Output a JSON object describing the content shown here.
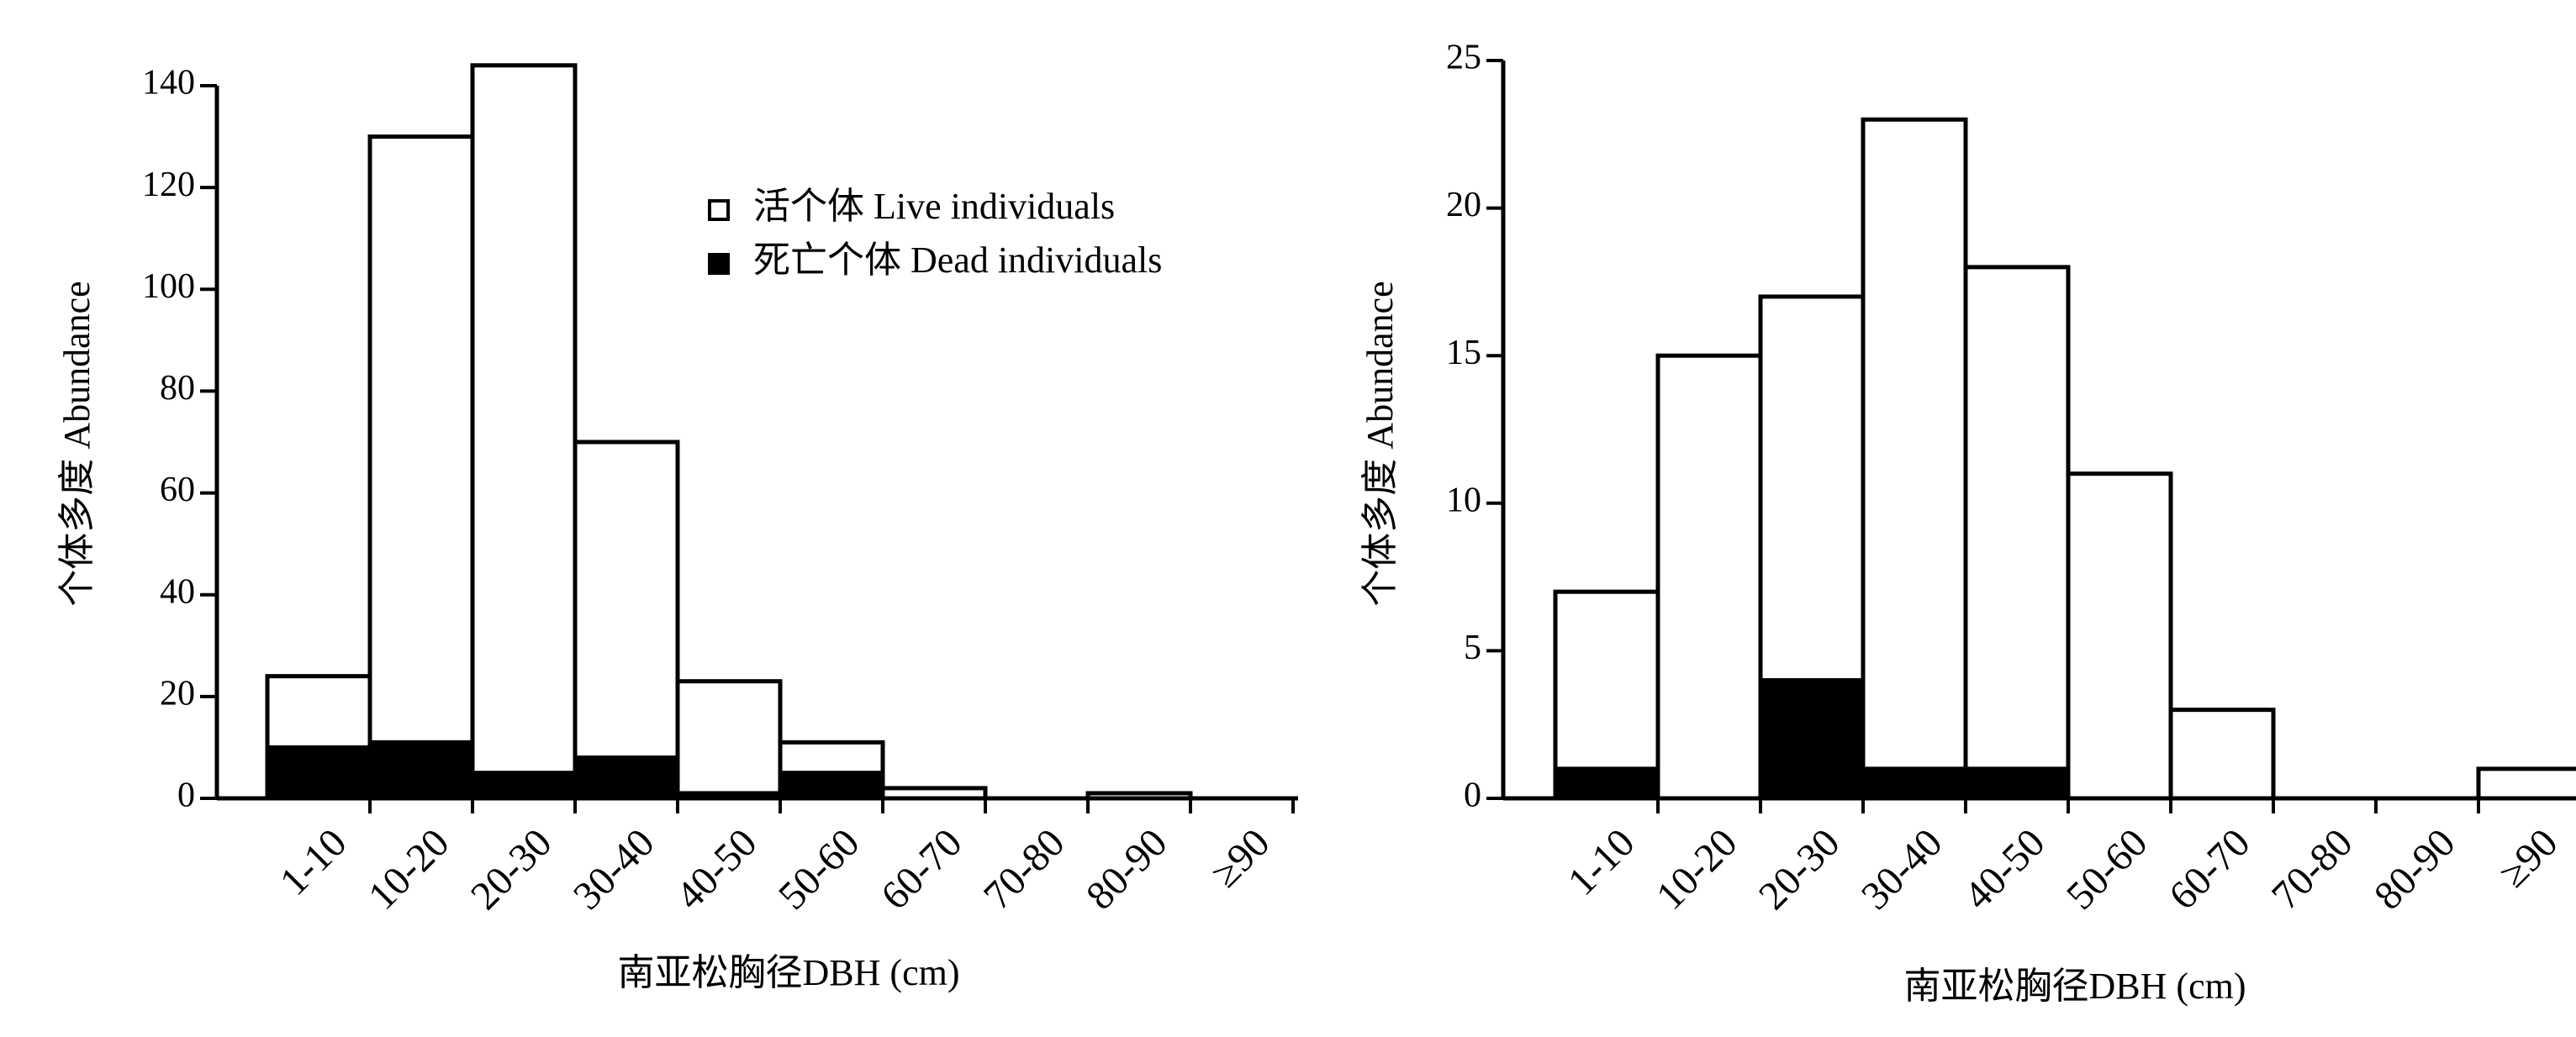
{
  "colors": {
    "live": "#ffffff",
    "dead": "#000000",
    "stroke": "#000000"
  },
  "chart_data": [
    {
      "type": "bar",
      "stacked": true,
      "categories": [
        "1-10",
        "10-20",
        "20-30",
        "30-40",
        "40-50",
        "50-60",
        "60-70",
        "70-80",
        "80-90",
        "≥90"
      ],
      "series": [
        {
          "name": "活个体 Live individuals",
          "values": [
            14,
            119,
            139,
            62,
            22,
            6,
            2,
            0,
            1,
            0
          ]
        },
        {
          "name": "死亡个体 Dead individuals",
          "values": [
            10,
            11,
            5,
            8,
            1,
            5,
            0,
            0,
            0,
            0
          ]
        }
      ],
      "xlabel": "南亚松胸径DBH (cm)",
      "ylabel": "个体多度 Abundance",
      "ylim": [
        0,
        140
      ],
      "yticks": [
        0,
        20,
        40,
        60,
        80,
        100,
        120,
        140
      ],
      "legend": "top-right",
      "grid": false
    },
    {
      "type": "bar",
      "stacked": true,
      "categories": [
        "1-10",
        "10-20",
        "20-30",
        "30-40",
        "40-50",
        "50-60",
        "60-70",
        "70-80",
        "80-90",
        "≥90"
      ],
      "series": [
        {
          "name": "活个体 Live individuals",
          "values": [
            6,
            15,
            13,
            22,
            17,
            11,
            3,
            0,
            0,
            1
          ]
        },
        {
          "name": "死亡个体 Dead individuals",
          "values": [
            1,
            0,
            4,
            1,
            1,
            0,
            0,
            0,
            0,
            0
          ]
        }
      ],
      "xlabel": "南亚松胸径DBH (cm)",
      "ylabel": "个体多度 Abundance",
      "ylim": [
        0,
        25
      ],
      "yticks": [
        0,
        5,
        10,
        15,
        20,
        25
      ],
      "grid": false
    }
  ]
}
